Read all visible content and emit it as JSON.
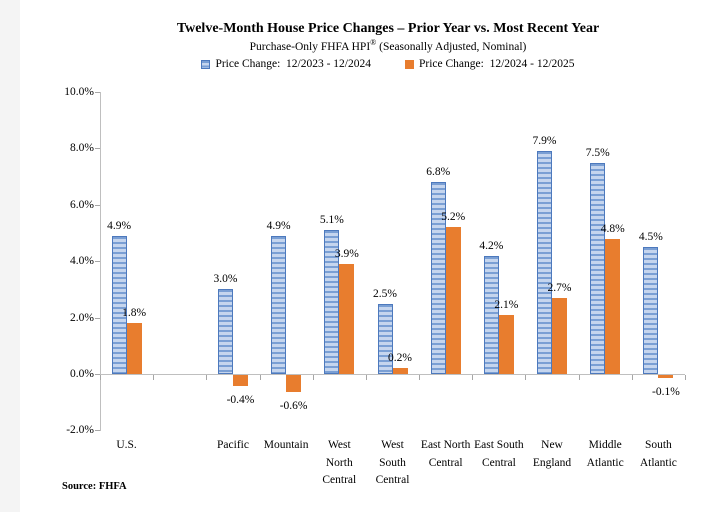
{
  "header": {
    "title": "Twelve-Month House Price Changes – Prior Year vs. Most Recent Year",
    "subtitle_pre": "Purchase-Only FHFA HPI",
    "subtitle_sup": "®",
    "subtitle_post": " (Seasonally Adjusted, Nominal)"
  },
  "legend": {
    "items": [
      {
        "label": "Price Change:  12/2023 - 12/2024",
        "swatch": "blue-striped"
      },
      {
        "label": "Price Change:  12/2024 - 12/2025",
        "swatch": "orange-solid"
      }
    ]
  },
  "chart_data": {
    "type": "bar",
    "title": "Twelve-Month House Price Changes – Prior Year vs. Most Recent Year",
    "subtitle": "Purchase-Only FHFA HPI® (Seasonally Adjusted, Nominal)",
    "categories": [
      "U.S.",
      "Pacific",
      "Mountain",
      "West North Central",
      "West South Central",
      "East North Central",
      "East South Central",
      "New England",
      "Middle Atlantic",
      "South Atlantic"
    ],
    "category_label_lines": [
      [
        "U.S."
      ],
      [
        "Pacific"
      ],
      [
        "Mountain"
      ],
      [
        "West",
        "North",
        "Central"
      ],
      [
        "West",
        "South",
        "Central"
      ],
      [
        "East North",
        "Central"
      ],
      [
        "East South",
        "Central"
      ],
      [
        "New",
        "England"
      ],
      [
        "Middle",
        "Atlantic"
      ],
      [
        "South",
        "Atlantic"
      ]
    ],
    "series": [
      {
        "name": "Price Change:  12/2023 - 12/2024",
        "color": "#4d79bd",
        "fill": "striped-blue",
        "values": [
          4.9,
          3.0,
          4.9,
          5.1,
          2.5,
          6.8,
          4.2,
          7.9,
          7.5,
          4.5
        ],
        "labels": [
          "4.9%",
          "3.0%",
          "4.9%",
          "5.1%",
          "2.5%",
          "6.8%",
          "4.2%",
          "7.9%",
          "7.5%",
          "4.5%"
        ]
      },
      {
        "name": "Price Change:  12/2024 - 12/2025",
        "color": "#e87d2e",
        "fill": "solid-orange",
        "values": [
          1.8,
          -0.4,
          -0.6,
          3.9,
          0.2,
          5.2,
          2.1,
          2.7,
          4.8,
          -0.1
        ],
        "labels": [
          "1.8%",
          "-0.4%",
          "-0.6%",
          "3.9%",
          "0.2%",
          "5.2%",
          "2.1%",
          "2.7%",
          "4.8%",
          "-0.1%"
        ]
      }
    ],
    "y_axis": {
      "min": -2,
      "max": 10,
      "ticks": [
        {
          "value": 10,
          "label": "10.0%"
        },
        {
          "value": 8,
          "label": "8.0%"
        },
        {
          "value": 6,
          "label": "6.0%"
        },
        {
          "value": 4,
          "label": "4.0%"
        },
        {
          "value": 2,
          "label": "2.0%"
        },
        {
          "value": 0,
          "label": "0.0%"
        },
        {
          "value": -2,
          "label": "-2.0%"
        }
      ]
    },
    "grid": false,
    "legend_position": "top",
    "spacer_slot_after_first_category": true
  },
  "footer": {
    "source": "Source: FHFA"
  }
}
